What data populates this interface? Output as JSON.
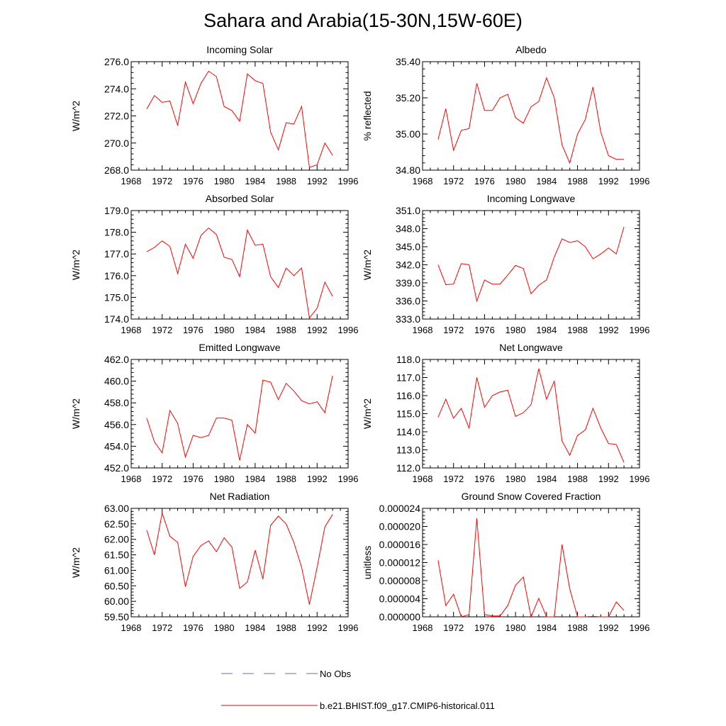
{
  "title": "Sahara and Arabia(15-30N,15W-60E)",
  "series_color": "#ff0000",
  "obs_color": "#6a6ad0",
  "legend": {
    "obs_label": "No Obs",
    "model_label": "b.e21.BHIST.f09_g17.CMIP6-historical.011"
  },
  "chart_data": [
    {
      "type": "line",
      "title": "Incoming Solar",
      "ylabel": "W/m^2",
      "xlim": [
        1968,
        1996
      ],
      "ylim": [
        268.0,
        276.0
      ],
      "xticks": [
        "1968",
        "1972",
        "1976",
        "1980",
        "1984",
        "1988",
        "1992",
        "1996"
      ],
      "yticks": [
        "268.0",
        "270.0",
        "272.0",
        "274.0",
        "276.0"
      ],
      "x": [
        1970,
        1971,
        1972,
        1973,
        1974,
        1975,
        1976,
        1977,
        1978,
        1979,
        1980,
        1981,
        1982,
        1983,
        1984,
        1985,
        1986,
        1987,
        1988,
        1989,
        1990,
        1991,
        1992,
        1993,
        1994
      ],
      "y": [
        272.5,
        273.5,
        273.0,
        273.1,
        271.3,
        274.5,
        272.9,
        274.4,
        275.3,
        274.9,
        272.7,
        272.4,
        271.6,
        275.1,
        274.6,
        274.4,
        270.8,
        269.5,
        271.5,
        271.4,
        272.7,
        268.2,
        268.4,
        270.0,
        269.1
      ]
    },
    {
      "type": "line",
      "title": "Albedo",
      "ylabel": "% reflected",
      "xlim": [
        1968,
        1996
      ],
      "ylim": [
        34.8,
        35.4
      ],
      "xticks": [
        "1968",
        "1972",
        "1976",
        "1980",
        "1984",
        "1988",
        "1992",
        "1996"
      ],
      "yticks": [
        "34.80",
        "35.00",
        "35.20",
        "35.40"
      ],
      "x": [
        1970,
        1971,
        1972,
        1973,
        1974,
        1975,
        1976,
        1977,
        1978,
        1979,
        1980,
        1981,
        1982,
        1983,
        1984,
        1985,
        1986,
        1987,
        1988,
        1989,
        1990,
        1991,
        1992,
        1993,
        1994
      ],
      "y": [
        34.97,
        35.14,
        34.91,
        35.02,
        35.03,
        35.28,
        35.13,
        35.13,
        35.2,
        35.22,
        35.09,
        35.06,
        35.15,
        35.18,
        35.31,
        35.2,
        34.94,
        34.84,
        35.0,
        35.08,
        35.26,
        35.01,
        34.88,
        34.86,
        34.86
      ]
    },
    {
      "type": "line",
      "title": "Absorbed Solar",
      "ylabel": "W/m^2",
      "xlim": [
        1968,
        1996
      ],
      "ylim": [
        174.0,
        179.0
      ],
      "xticks": [
        "1968",
        "1972",
        "1976",
        "1980",
        "1984",
        "1988",
        "1992",
        "1996"
      ],
      "yticks": [
        "174.0",
        "175.0",
        "176.0",
        "177.0",
        "178.0",
        "179.0"
      ],
      "x": [
        1970,
        1971,
        1972,
        1973,
        1974,
        1975,
        1976,
        1977,
        1978,
        1979,
        1980,
        1981,
        1982,
        1983,
        1984,
        1985,
        1986,
        1987,
        1988,
        1989,
        1990,
        1991,
        1992,
        1993,
        1994
      ],
      "y": [
        177.1,
        177.3,
        177.6,
        177.35,
        176.1,
        177.45,
        176.8,
        177.85,
        178.2,
        177.9,
        176.85,
        176.75,
        175.95,
        178.1,
        177.4,
        177.45,
        175.95,
        175.45,
        176.35,
        176.0,
        176.35,
        174.05,
        174.5,
        175.7,
        175.05
      ]
    },
    {
      "type": "line",
      "title": "Incoming Longwave",
      "ylabel": "W/m^2",
      "xlim": [
        1968,
        1996
      ],
      "ylim": [
        333.0,
        351.0
      ],
      "xticks": [
        "1968",
        "1972",
        "1976",
        "1980",
        "1984",
        "1988",
        "1992",
        "1996"
      ],
      "yticks": [
        "333.0",
        "336.0",
        "339.0",
        "342.0",
        "345.0",
        "348.0",
        "351.0"
      ],
      "x": [
        1970,
        1971,
        1972,
        1973,
        1974,
        1975,
        1976,
        1977,
        1978,
        1979,
        1980,
        1981,
        1982,
        1983,
        1984,
        1985,
        1986,
        1987,
        1988,
        1989,
        1990,
        1991,
        1992,
        1993,
        1994
      ],
      "y": [
        342.0,
        338.7,
        338.8,
        342.2,
        342.0,
        336.0,
        339.5,
        338.8,
        338.8,
        340.3,
        341.9,
        341.4,
        337.2,
        338.6,
        339.5,
        343.3,
        346.3,
        345.7,
        346.0,
        345.0,
        343.0,
        343.8,
        344.8,
        343.8,
        348.3
      ]
    },
    {
      "type": "line",
      "title": "Emitted Longwave",
      "ylabel": "W/m^2",
      "xlim": [
        1968,
        1996
      ],
      "ylim": [
        452.0,
        462.0
      ],
      "xticks": [
        "1968",
        "1972",
        "1976",
        "1980",
        "1984",
        "1988",
        "1992",
        "1996"
      ],
      "yticks": [
        "452.0",
        "454.0",
        "456.0",
        "458.0",
        "460.0",
        "462.0"
      ],
      "x": [
        1970,
        1971,
        1972,
        1973,
        1974,
        1975,
        1976,
        1977,
        1978,
        1979,
        1980,
        1981,
        1982,
        1983,
        1984,
        1985,
        1986,
        1987,
        1988,
        1989,
        1990,
        1991,
        1992,
        1993,
        1994
      ],
      "y": [
        456.6,
        454.4,
        453.4,
        457.3,
        456.1,
        453.0,
        455.0,
        454.8,
        455.0,
        456.6,
        456.6,
        456.4,
        452.7,
        456.0,
        455.2,
        460.1,
        459.9,
        458.3,
        459.8,
        459.1,
        458.2,
        457.9,
        458.1,
        457.1,
        460.5
      ]
    },
    {
      "type": "line",
      "title": "Net Longwave",
      "ylabel": "W/m^2",
      "xlim": [
        1968,
        1996
      ],
      "ylim": [
        112.0,
        118.0
      ],
      "xticks": [
        "1968",
        "1972",
        "1976",
        "1980",
        "1984",
        "1988",
        "1992",
        "1996"
      ],
      "yticks": [
        "112.0",
        "113.0",
        "114.0",
        "115.0",
        "116.0",
        "117.0",
        "118.0"
      ],
      "x": [
        1970,
        1971,
        1972,
        1973,
        1974,
        1975,
        1976,
        1977,
        1978,
        1979,
        1980,
        1981,
        1982,
        1983,
        1984,
        1985,
        1986,
        1987,
        1988,
        1989,
        1990,
        1991,
        1992,
        1993,
        1994
      ],
      "y": [
        114.8,
        115.8,
        114.75,
        115.3,
        114.2,
        117.0,
        115.35,
        116.0,
        116.2,
        116.3,
        114.85,
        115.05,
        115.5,
        117.5,
        115.8,
        116.8,
        113.5,
        112.7,
        113.8,
        114.1,
        115.3,
        114.2,
        113.35,
        113.3,
        112.3
      ]
    },
    {
      "type": "line",
      "title": "Net Radiation",
      "ylabel": "W/m^2",
      "xlim": [
        1968,
        1996
      ],
      "ylim": [
        59.5,
        63.0
      ],
      "xticks": [
        "1968",
        "1972",
        "1976",
        "1980",
        "1984",
        "1988",
        "1992",
        "1996"
      ],
      "yticks": [
        "59.50",
        "60.00",
        "60.50",
        "61.00",
        "61.50",
        "62.00",
        "62.50",
        "63.00"
      ],
      "x": [
        1970,
        1971,
        1972,
        1973,
        1974,
        1975,
        1976,
        1977,
        1978,
        1979,
        1980,
        1981,
        1982,
        1983,
        1984,
        1985,
        1986,
        1987,
        1988,
        1989,
        1990,
        1991,
        1992,
        1993,
        1994
      ],
      "y": [
        62.3,
        61.5,
        62.85,
        62.1,
        61.9,
        60.47,
        61.45,
        61.8,
        61.95,
        61.6,
        62.05,
        61.75,
        60.42,
        60.62,
        61.65,
        60.72,
        62.45,
        62.75,
        62.5,
        61.9,
        61.1,
        59.9,
        61.1,
        62.4,
        62.8
      ]
    },
    {
      "type": "line",
      "title": "Ground Snow Covered Fraction",
      "ylabel": "unitless",
      "xlim": [
        1968,
        1996
      ],
      "ylim": [
        0.0,
        2.4e-05
      ],
      "xticks": [
        "1968",
        "1972",
        "1976",
        "1980",
        "1984",
        "1988",
        "1992",
        "1996"
      ],
      "yticks": [
        "0.000000",
        "0.000004",
        "0.000008",
        "0.000012",
        "0.000016",
        "0.000020",
        "0.000024"
      ],
      "x": [
        1970,
        1971,
        1972,
        1973,
        1974,
        1975,
        1976,
        1977,
        1978,
        1979,
        1980,
        1981,
        1982,
        1983,
        1984,
        1985,
        1986,
        1987,
        1988,
        1989,
        1990,
        1991,
        1992,
        1993,
        1994
      ],
      "y": [
        1.25e-05,
        2.5e-06,
        5e-06,
        0.0,
        5e-07,
        2.18e-05,
        5e-07,
        2e-07,
        2e-07,
        2.5e-06,
        7e-06,
        8.8e-06,
        0.0,
        4.1e-06,
        0.0,
        0.0,
        1.6e-05,
        6.2e-06,
        0.0,
        0.0,
        1e-07,
        0.0,
        0.0,
        3.3e-06,
        1.4e-06
      ]
    }
  ]
}
